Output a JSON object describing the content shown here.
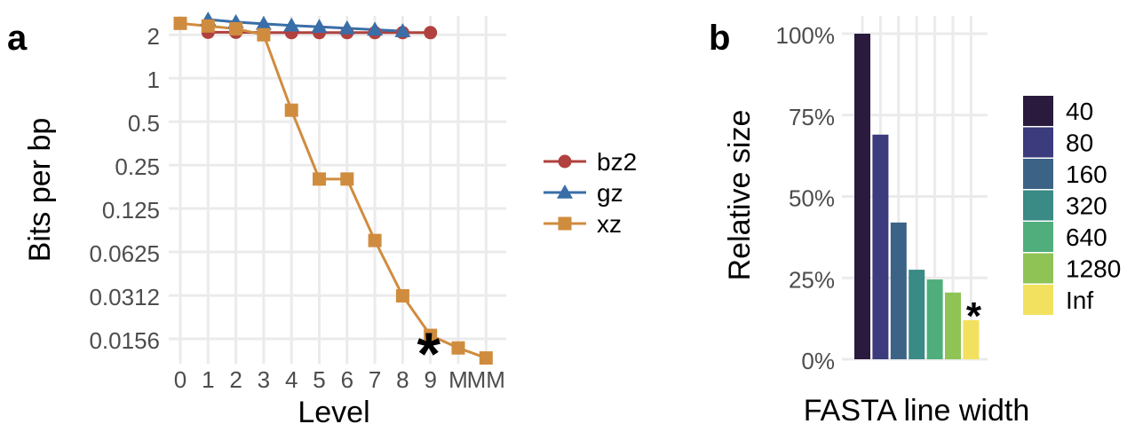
{
  "panels": {
    "a_label": "a",
    "b_label": "b"
  },
  "chart_data": [
    {
      "panel": "a",
      "type": "line",
      "xlabel": "Level",
      "ylabel": "Bits per bp",
      "y_scale": "log2",
      "ylim": [
        0.0105,
        2.7
      ],
      "yticks": [
        2,
        1,
        0.5,
        0.25,
        0.125,
        0.0625,
        0.0312,
        0.0156
      ],
      "ytick_labels": [
        "2",
        "1",
        "0.5",
        "0.25",
        "0.125",
        "0.0625",
        "0.0312",
        "0.0156"
      ],
      "categories": [
        "0",
        "1",
        "2",
        "3",
        "4",
        "5",
        "6",
        "7",
        "8",
        "9",
        "M",
        "MM"
      ],
      "grid": true,
      "legend_position": "right",
      "series": [
        {
          "name": "bz2",
          "marker": "circle",
          "color": "#B0413E",
          "x": [
            "1",
            "2",
            "3",
            "4",
            "5",
            "6",
            "7",
            "8",
            "9"
          ],
          "y": [
            2.08,
            2.08,
            2.07,
            2.07,
            2.07,
            2.07,
            2.07,
            2.07,
            2.07
          ]
        },
        {
          "name": "gz",
          "marker": "triangle",
          "color": "#3A6EA8",
          "x": [
            "1",
            "2",
            "3",
            "4",
            "5",
            "6",
            "7",
            "8"
          ],
          "y": [
            2.55,
            2.45,
            2.38,
            2.32,
            2.27,
            2.22,
            2.17,
            2.12
          ]
        },
        {
          "name": "xz",
          "marker": "square",
          "color": "#D08C3E",
          "x": [
            "0",
            "1",
            "2",
            "3",
            "4",
            "5",
            "6",
            "7",
            "8",
            "9",
            "M",
            "MM"
          ],
          "y": [
            2.4,
            2.3,
            2.2,
            2.0,
            0.6,
            0.2,
            0.2,
            0.075,
            0.031,
            0.0165,
            0.0135,
            0.0115
          ]
        }
      ],
      "annotation": {
        "text": "*",
        "x": "9",
        "y": 0.0165
      }
    },
    {
      "panel": "b",
      "type": "bar",
      "xlabel": "FASTA line width",
      "ylabel": "Relative size",
      "ylim": [
        0,
        100
      ],
      "yticks": [
        0,
        25,
        50,
        75,
        100
      ],
      "ytick_labels": [
        "0%",
        "25%",
        "50%",
        "75%",
        "100%"
      ],
      "categories": [
        "40",
        "80",
        "160",
        "320",
        "640",
        "1280",
        "Inf"
      ],
      "values": [
        100,
        69,
        42,
        27.5,
        24.5,
        20.5,
        12
      ],
      "colors": [
        "#2A1A3E",
        "#3B3B7E",
        "#3C6386",
        "#3A8A85",
        "#4FAE7B",
        "#8FC356",
        "#F2E15E"
      ],
      "grid": true,
      "legend_position": "right",
      "annotation": {
        "text": "*",
        "category": "Inf"
      }
    }
  ]
}
